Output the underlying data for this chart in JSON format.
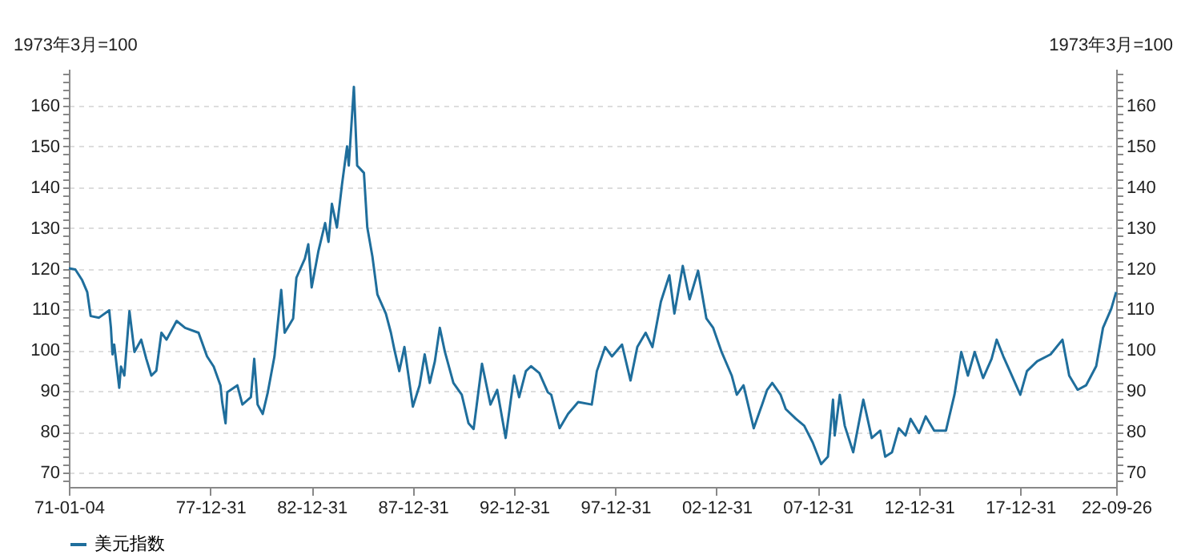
{
  "chart_data": {
    "type": "line",
    "ylabel": "1973年3月=100",
    "y2label": "1973年3月=100",
    "x": [
      "1971-01-04",
      "1971-05",
      "1971-09",
      "1971-12",
      "1972-02",
      "1972-07",
      "1973-01",
      "1973-02",
      "1973-03",
      "1973-04",
      "1973-07",
      "1973-08",
      "1973-10",
      "1974-01",
      "1974-04",
      "1974-08",
      "1974-11",
      "1975-02",
      "1975-05",
      "1975-08",
      "1975-11",
      "1976-05",
      "1976-10",
      "1977-06",
      "1977-11",
      "1978-03",
      "1978-07",
      "1978-08",
      "1978-10",
      "1978-11",
      "1979-05",
      "1979-08",
      "1980-01",
      "1980-03",
      "1980-05",
      "1980-08",
      "1980-11",
      "1981-03",
      "1981-07",
      "1981-09",
      "1982-02",
      "1982-04",
      "1982-09",
      "1982-11",
      "1983-01",
      "1983-05",
      "1983-09",
      "1983-11",
      "1984-01",
      "1984-04",
      "1984-07",
      "1984-10",
      "1984-11",
      "1985-02",
      "1985-04",
      "1985-08",
      "1985-10",
      "1986-01",
      "1986-04",
      "1986-09",
      "1986-12",
      "1987-02",
      "1987-05",
      "1987-08",
      "1988-01",
      "1988-05",
      "1988-08",
      "1988-11",
      "1989-02",
      "1989-05",
      "1989-08",
      "1990-01",
      "1990-06",
      "1990-10",
      "1991-01",
      "1991-06",
      "1991-11",
      "1992-03",
      "1992-08",
      "1993-01",
      "1993-04",
      "1993-08",
      "1993-11",
      "1994-04",
      "1994-09",
      "1994-11",
      "1995-04",
      "1995-09",
      "1996-03",
      "1996-11",
      "1997-02",
      "1997-07",
      "1997-11",
      "1998-05",
      "1998-10",
      "1999-02",
      "1999-07",
      "1999-11",
      "2000-04",
      "2000-09",
      "2000-12",
      "2001-05",
      "2001-09",
      "2002-02",
      "2002-07",
      "2002-11",
      "2003-04",
      "2003-10",
      "2004-01",
      "2004-05",
      "2004-11",
      "2005-04",
      "2005-07",
      "2005-10",
      "2006-03",
      "2006-06",
      "2006-12",
      "2007-05",
      "2007-10",
      "2008-03",
      "2008-07",
      "2008-10",
      "2008-11",
      "2009-02",
      "2009-05",
      "2009-10",
      "2010-04",
      "2010-09",
      "2011-02",
      "2011-05",
      "2011-09",
      "2012-01",
      "2012-05",
      "2012-08",
      "2013-01",
      "2013-05",
      "2013-10",
      "2014-05",
      "2014-10",
      "2015-02",
      "2015-06",
      "2015-10",
      "2016-03",
      "2016-08",
      "2016-11",
      "2017-03",
      "2017-08",
      "2018-01",
      "2018-05",
      "2018-11",
      "2019-07",
      "2020-02",
      "2020-06",
      "2020-11",
      "2021-04",
      "2021-10",
      "2022-02",
      "2022-07",
      "2022-09-26"
    ],
    "series": [
      {
        "name": "美元指数",
        "color": "#1f6e9c",
        "values": [
          120.1,
          119.8,
          117.2,
          114.3,
          108.4,
          108,
          109.8,
          105.5,
          99,
          101.4,
          90.8,
          96,
          93.8,
          109.6,
          99.6,
          102.6,
          97.9,
          93.8,
          95,
          104.3,
          102.6,
          107.2,
          105.5,
          104.3,
          98.5,
          96,
          91.4,
          87.3,
          82.1,
          89.7,
          91.4,
          86.7,
          88.5,
          97.9,
          86.7,
          84.4,
          89.7,
          98.5,
          114.8,
          104.3,
          107.8,
          117.8,
          122.5,
          126,
          115.4,
          124.2,
          131.2,
          126.6,
          135.9,
          130.1,
          140.6,
          150,
          145.3,
          164.6,
          145.3,
          143.5,
          130.1,
          123,
          113.7,
          109,
          104.3,
          100.2,
          94.9,
          100.8,
          86.2,
          91.4,
          99,
          92,
          97.3,
          105.5,
          99.6,
          92,
          89.1,
          82.1,
          80.7,
          96.7,
          86.7,
          90.3,
          78.5,
          93.8,
          88.5,
          94.9,
          96.1,
          94.4,
          89.7,
          89.1,
          80.9,
          84.4,
          87.3,
          86.7,
          94.9,
          100.8,
          98.5,
          101.4,
          92.6,
          100.8,
          104.3,
          100.8,
          111.9,
          118.4,
          109,
          120.7,
          112.5,
          119.5,
          107.8,
          105.5,
          99.6,
          93.8,
          89.1,
          91.4,
          80.9,
          86.7,
          90.3,
          92,
          89.1,
          85.6,
          83.2,
          81.5,
          77.4,
          72.1,
          73.9,
          87.9,
          79.1,
          89.1,
          81.5,
          75,
          87.9,
          78.5,
          80.3,
          73.9,
          75,
          80.9,
          79.1,
          83.2,
          79.7,
          83.8,
          80.3,
          80.3,
          89.1,
          99.6,
          93.8,
          99.6,
          93.2,
          97.9,
          102.6,
          98.5,
          93.8,
          89.1,
          94.9,
          97.3,
          99,
          102.6,
          93.8,
          90.3,
          91.4,
          96.1,
          105.5,
          110.2,
          114.3
        ]
      }
    ],
    "xlim": [
      "1971-01-04",
      "2022-09-26"
    ],
    "xticks": [
      {
        "value": "1971-01-04",
        "label": "71-01-04"
      },
      {
        "value": "1977-12-31",
        "label": "77-12-31"
      },
      {
        "value": "1982-12-31",
        "label": "82-12-31"
      },
      {
        "value": "1987-12-31",
        "label": "87-12-31"
      },
      {
        "value": "1992-12-31",
        "label": "92-12-31"
      },
      {
        "value": "1997-12-31",
        "label": "97-12-31"
      },
      {
        "value": "2002-12-31",
        "label": "02-12-31"
      },
      {
        "value": "2007-12-31",
        "label": "07-12-31"
      },
      {
        "value": "2012-12-31",
        "label": "12-12-31"
      },
      {
        "value": "2017-12-31",
        "label": "17-12-31"
      },
      {
        "value": "2022-09-26",
        "label": "22-09-26"
      }
    ],
    "ylim": [
      66.5,
      169
    ],
    "yticks": [
      {
        "value": 68,
        "label": null
      },
      70,
      {
        "value": 72,
        "label": null
      },
      {
        "value": 74,
        "label": null
      },
      {
        "value": 76,
        "label": null
      },
      {
        "value": 78,
        "label": null
      },
      80,
      {
        "value": 82,
        "label": null
      },
      {
        "value": 84,
        "label": null
      },
      {
        "value": 86,
        "label": null
      },
      {
        "value": 88,
        "label": null
      },
      90,
      {
        "value": 92,
        "label": null
      },
      {
        "value": 94,
        "label": null
      },
      {
        "value": 96,
        "label": null
      },
      {
        "value": 98,
        "label": null
      },
      100,
      {
        "value": 102,
        "label": null
      },
      {
        "value": 104,
        "label": null
      },
      {
        "value": 106,
        "label": null
      },
      {
        "value": 108,
        "label": null
      },
      110,
      {
        "value": 112,
        "label": null
      },
      {
        "value": 114,
        "label": null
      },
      {
        "value": 116,
        "label": null
      },
      {
        "value": 118,
        "label": null
      },
      120,
      {
        "value": 122,
        "label": null
      },
      {
        "value": 124,
        "label": null
      },
      {
        "value": 126,
        "label": null
      },
      {
        "value": 128,
        "label": null
      },
      130,
      {
        "value": 132,
        "label": null
      },
      {
        "value": 134,
        "label": null
      },
      {
        "value": 136,
        "label": null
      },
      {
        "value": 138,
        "label": null
      },
      140,
      {
        "value": 142,
        "label": null
      },
      {
        "value": 144,
        "label": null
      },
      {
        "value": 146,
        "label": null
      },
      {
        "value": 148,
        "label": null
      },
      150,
      {
        "value": 152,
        "label": null
      },
      {
        "value": 154,
        "label": null
      },
      {
        "value": 156,
        "label": null
      },
      {
        "value": 158,
        "label": null
      },
      160,
      {
        "value": 162,
        "label": null
      },
      {
        "value": 164,
        "label": null
      },
      {
        "value": 166,
        "label": null
      },
      {
        "value": 168,
        "label": null
      }
    ],
    "y2lim": [
      66.5,
      169
    ],
    "y2ticks": [
      {
        "value": 68,
        "label": null
      },
      70,
      {
        "value": 72,
        "label": null
      },
      {
        "value": 74,
        "label": null
      },
      {
        "value": 76,
        "label": null
      },
      {
        "value": 78,
        "label": null
      },
      80,
      {
        "value": 82,
        "label": null
      },
      {
        "value": 84,
        "label": null
      },
      {
        "value": 86,
        "label": null
      },
      {
        "value": 88,
        "label": null
      },
      90,
      {
        "value": 92,
        "label": null
      },
      {
        "value": 94,
        "label": null
      },
      {
        "value": 96,
        "label": null
      },
      {
        "value": 98,
        "label": null
      },
      100,
      {
        "value": 102,
        "label": null
      },
      {
        "value": 104,
        "label": null
      },
      {
        "value": 106,
        "label": null
      },
      {
        "value": 108,
        "label": null
      },
      110,
      {
        "value": 112,
        "label": null
      },
      {
        "value": 114,
        "label": null
      },
      {
        "value": 116,
        "label": null
      },
      {
        "value": 118,
        "label": null
      },
      120,
      {
        "value": 122,
        "label": null
      },
      {
        "value": 124,
        "label": null
      },
      {
        "value": 126,
        "label": null
      },
      {
        "value": 128,
        "label": null
      },
      130,
      {
        "value": 132,
        "label": null
      },
      {
        "value": 134,
        "label": null
      },
      {
        "value": 136,
        "label": null
      },
      {
        "value": 138,
        "label": null
      },
      140,
      {
        "value": 142,
        "label": null
      },
      {
        "value": 144,
        "label": null
      },
      {
        "value": 146,
        "label": null
      },
      {
        "value": 148,
        "label": null
      },
      150,
      {
        "value": 152,
        "label": null
      },
      {
        "value": 154,
        "label": null
      },
      {
        "value": 156,
        "label": null
      },
      {
        "value": 158,
        "label": null
      },
      160,
      {
        "value": 162,
        "label": null
      },
      {
        "value": 164,
        "label": null
      },
      {
        "value": 166,
        "label": null
      },
      {
        "value": 168,
        "label": null
      }
    ],
    "grid": "y",
    "legend": "bottom",
    "line_style": "solid"
  }
}
